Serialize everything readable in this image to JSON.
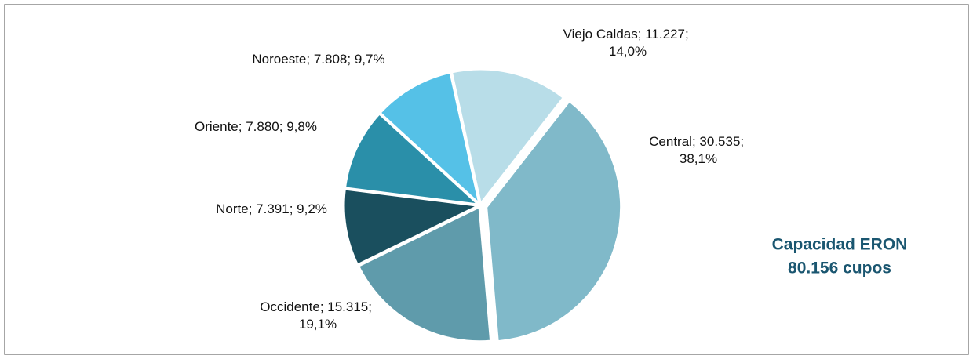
{
  "chart_data": {
    "type": "pie",
    "categories": [
      "Central",
      "Occidente",
      "Norte",
      "Oriente",
      "Noroeste",
      "Viejo Caldas"
    ],
    "values": [
      30535,
      15315,
      7391,
      7880,
      7808,
      11227
    ],
    "value_labels": [
      "30.535",
      "15.315",
      "7.391",
      "7.880",
      "7.808",
      "11.227"
    ],
    "percents": [
      38.1,
      19.1,
      9.2,
      9.8,
      9.7,
      14.0
    ],
    "percent_labels": [
      "38,1%",
      "19,1%",
      "9,2%",
      "9,8%",
      "9,7%",
      "14,0%"
    ],
    "label_separator": "; ",
    "colors": [
      "#80b9c9",
      "#5f9bab",
      "#1a4f5e",
      "#2a8fa9",
      "#55c1e7",
      "#b8dde8"
    ],
    "annotation": [
      "Capacidad ERON",
      "80.156 cupos"
    ]
  }
}
